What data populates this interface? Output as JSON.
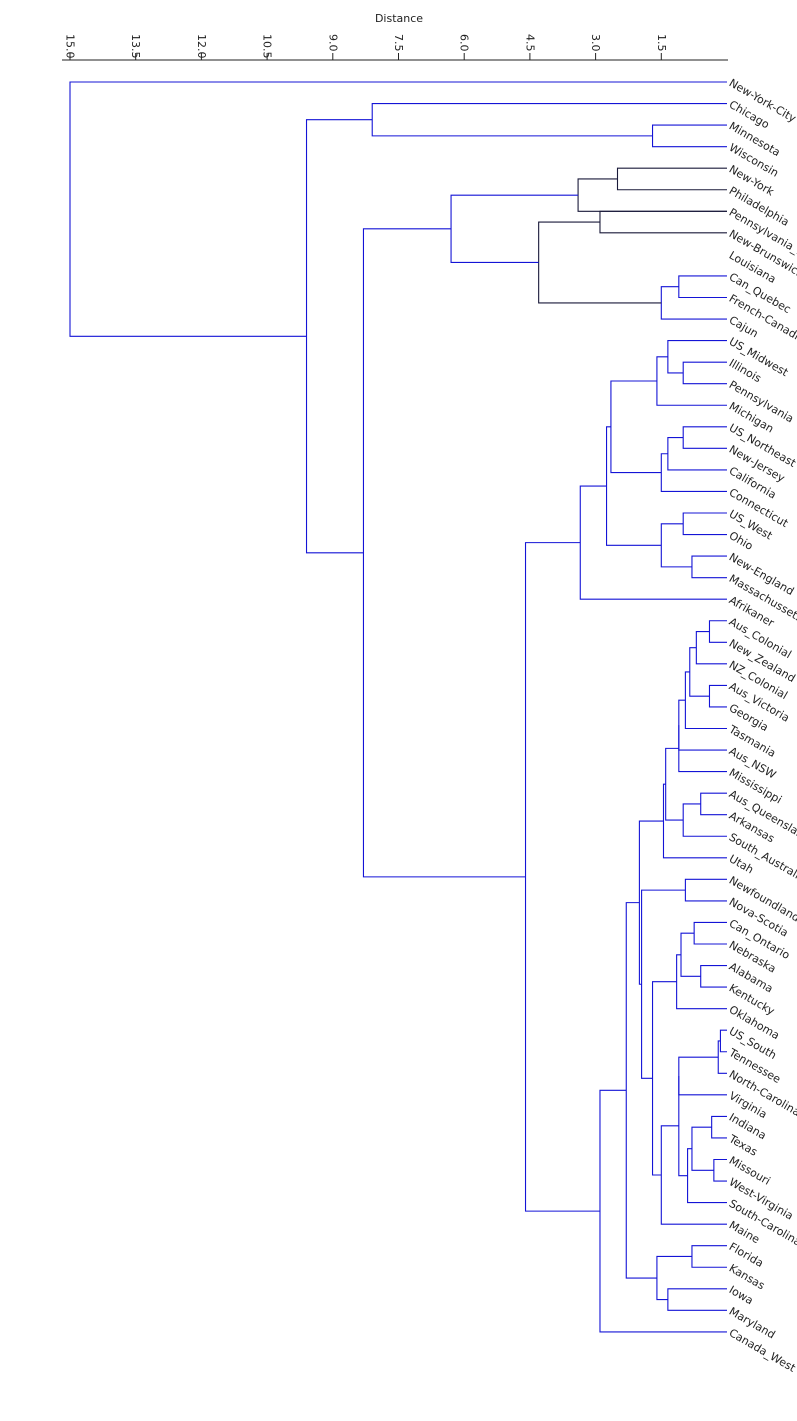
{
  "chart_data": {
    "type": "dendrogram",
    "orientation": "leaves-right",
    "xlabel": "Distance",
    "x_axis": {
      "range": [
        15.0,
        0.0
      ],
      "position": "top",
      "ticks": [
        "15.0",
        "13.5",
        "12.0",
        "10.5",
        "9.0",
        "7.5",
        "6.0",
        "4.5",
        "3.0",
        "1.5"
      ]
    },
    "colors": {
      "line": "#1414d6",
      "highlight_line": "#1a1a3a",
      "text": "#222222"
    },
    "leaves": [
      "New-York-City",
      "Chicago",
      "Minnesota",
      "Wisconsin",
      "New-York",
      "Philadelphia",
      "Pennsylvania_Du",
      "New-Brunswick",
      "Louisiana",
      "Can_Quebec",
      "French-Canadian",
      "Cajun",
      "US_Midwest",
      "Illinois",
      "Pennsylvania",
      "Michigan",
      "US_Northeast",
      "New-Jersey",
      "California",
      "Connecticut",
      "US_West",
      "Ohio",
      "New-England",
      "Massachussets",
      "Afrikaner",
      "Aus_Colonial",
      "New_Zealand",
      "NZ_Colonial",
      "Aus_Victoria",
      "Georgia",
      "Tasmania",
      "Aus_NSW",
      "Mississippi",
      "Aus_Queensland",
      "Arkansas",
      "South_Australia",
      "Utah",
      "Newfoundland",
      "Nova-Scotia",
      "Can_Ontario",
      "Nebraska",
      "Alabama",
      "Kentucky",
      "Oklahoma",
      "US_South",
      "Tennessee",
      "North-Carolina",
      "Virginia",
      "Indiana",
      "Texas",
      "Missouri",
      "West-Virginia",
      "South-Carolina",
      "Maine",
      "Florida",
      "Kansas",
      "Iowa",
      "Maryland",
      "Canada_West"
    ],
    "merges": [
      {
        "a": "L:New-York",
        "b": "L:Philadelphia",
        "height": 2.5
      },
      {
        "a": "L:Minnesota",
        "b": "L:Wisconsin",
        "height": 1.7
      },
      {
        "a": "L:Pennsylvania_Du",
        "b": "L:New-Brunswick",
        "height": 2.9
      },
      {
        "a": "L:Can_Quebec",
        "b": "L:French-Canadian",
        "height": 1.1
      },
      {
        "a": "L:Illinois",
        "b": "L:Pennsylvania",
        "height": 1.0
      },
      {
        "a": "L:US_Northeast",
        "b": "L:New-Jersey",
        "height": 1.0
      },
      {
        "a": "L:US_West",
        "b": "L:Ohio",
        "height": 1.0
      },
      {
        "a": "L:New-England",
        "b": "L:Massachussets",
        "height": 0.8
      },
      {
        "a": "L:Aus_Colonial",
        "b": "L:New_Zealand",
        "height": 0.4
      },
      {
        "a": "L:Aus_Victoria",
        "b": "L:Georgia",
        "height": 0.4
      },
      {
        "a": "L:Aus_Queensland",
        "b": "L:Arkansas",
        "height": 0.6
      },
      {
        "a": "L:Newfoundland",
        "b": "L:Nova-Scotia",
        "height": 0.95
      },
      {
        "a": "L:Can_Ontario",
        "b": "L:Nebraska",
        "height": 0.75
      },
      {
        "a": "L:Alabama",
        "b": "L:Kentucky",
        "height": 0.6
      },
      {
        "a": "L:US_South",
        "b": "L:Tennessee",
        "height": 0.15
      },
      {
        "a": "L:Indiana",
        "b": "L:Texas",
        "height": 0.35
      },
      {
        "a": "L:Missouri",
        "b": "L:West-Virginia",
        "height": 0.3
      },
      {
        "a": "L:Florida",
        "b": "L:Kansas",
        "height": 0.8
      },
      {
        "a": "L:Iowa",
        "b": "L:Maryland",
        "height": 1.35
      },
      {
        "a": "L:Chicago",
        "b": "C:1",
        "height": 8.1
      },
      {
        "a": "C:0",
        "b": "L:Pennsylvania_Du",
        "height": 3.4
      },
      {
        "a": "C:3",
        "b": "L:Cajun",
        "height": 1.5
      },
      {
        "a": "C:2",
        "b": "C:21",
        "height": 4.3
      },
      {
        "a": "C:20",
        "b": "C:22",
        "height": 6.3
      },
      {
        "a": "L:US_Midwest",
        "b": "C:4",
        "height": 1.35
      },
      {
        "a": "C:24",
        "b": "L:Michigan",
        "height": 1.6
      },
      {
        "a": "C:5",
        "b": "L:California",
        "height": 1.35
      },
      {
        "a": "C:26",
        "b": "L:Connecticut",
        "height": 1.5
      },
      {
        "a": "C:25",
        "b": "C:27",
        "height": 2.65
      },
      {
        "a": "C:6",
        "b": "C:7",
        "height": 1.5
      },
      {
        "a": "C:28",
        "b": "C:29",
        "height": 2.75
      },
      {
        "a": "C:30",
        "b": "L:Afrikaner",
        "height": 3.35
      },
      {
        "a": "C:8",
        "b": "L:NZ_Colonial",
        "height": 0.7
      },
      {
        "a": "C:32",
        "b": "C:9",
        "height": 0.85
      },
      {
        "a": "C:33",
        "b": "L:Tasmania",
        "height": 0.95
      },
      {
        "a": "C:34",
        "b": "L:Aus_NSW",
        "height": 1.1
      },
      {
        "a": "C:35",
        "b": "L:Mississippi",
        "height": 1.1
      },
      {
        "a": "C:10",
        "b": "L:South_Australia",
        "height": 1.0
      },
      {
        "a": "C:36",
        "b": "C:37",
        "height": 1.4
      },
      {
        "a": "C:38",
        "b": "L:Utah",
        "height": 1.45
      },
      {
        "a": "C:12",
        "b": "C:13",
        "height": 1.05
      },
      {
        "a": "C:40",
        "b": "L:Oklahoma",
        "height": 1.15
      },
      {
        "a": "C:14",
        "b": "L:North-Carolina",
        "height": 0.2
      },
      {
        "a": "C:42",
        "b": "L:Virginia",
        "height": 1.1
      },
      {
        "a": "C:15",
        "b": "C:16",
        "height": 0.8
      },
      {
        "a": "C:44",
        "b": "L:South-Carolina",
        "height": 0.9
      },
      {
        "a": "C:43",
        "b": "C:45",
        "height": 1.1
      },
      {
        "a": "C:46",
        "b": "L:Maine",
        "height": 1.5
      },
      {
        "a": "C:41",
        "b": "C:47",
        "height": 1.7
      },
      {
        "a": "C:11",
        "b": "C:48",
        "height": 1.95
      },
      {
        "a": "C:39",
        "b": "C:49",
        "height": 2.0
      },
      {
        "a": "C:17",
        "b": "C:18",
        "height": 1.6
      },
      {
        "a": "C:50",
        "b": "C:51",
        "height": 2.3
      },
      {
        "a": "C:52",
        "b": "L:Canada_West",
        "height": 2.9
      },
      {
        "a": "C:31",
        "b": "C:53",
        "height": 4.6
      },
      {
        "a": "C:23",
        "b": "C:54",
        "height": 8.3
      },
      {
        "a": "C:19",
        "b": "C:55",
        "height": 9.6
      },
      {
        "a": "L:New-York-City",
        "b": "C:56",
        "height": 15.0
      }
    ]
  }
}
